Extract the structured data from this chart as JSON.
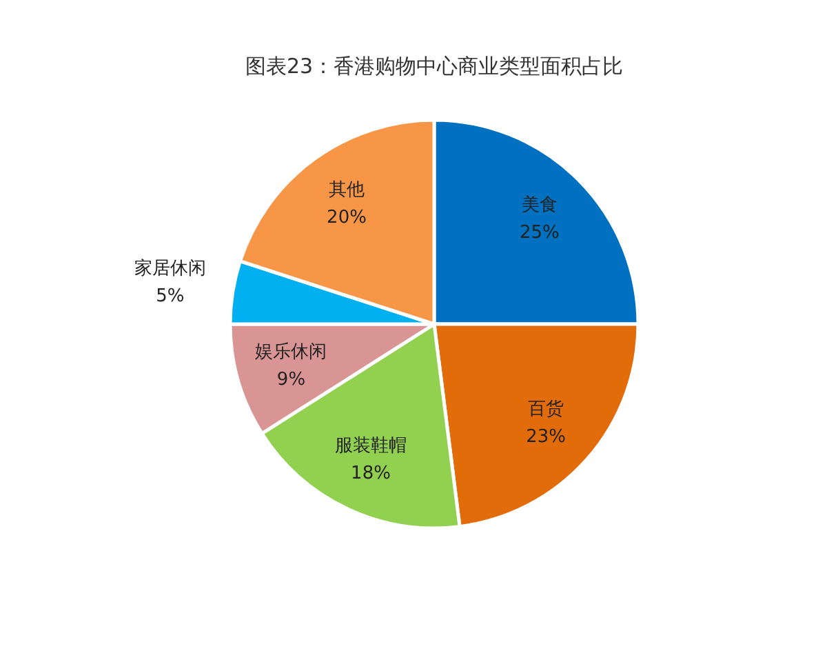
{
  "chart_data": {
    "type": "pie",
    "title": "图表23：香港购物中心商业类型面积占比",
    "categories": [
      "美食",
      "百货",
      "服装鞋帽",
      "娱乐休闲",
      "家居休闲",
      "其他"
    ],
    "values": [
      25,
      23,
      18,
      9,
      5,
      20
    ],
    "colors": [
      "#0070c0",
      "#e36c0a",
      "#92d050",
      "#d99594",
      "#00b0f0",
      "#f79646"
    ],
    "value_labels": [
      "25%",
      "23%",
      "18%",
      "9%",
      "5%",
      "20%"
    ],
    "legend": false
  }
}
